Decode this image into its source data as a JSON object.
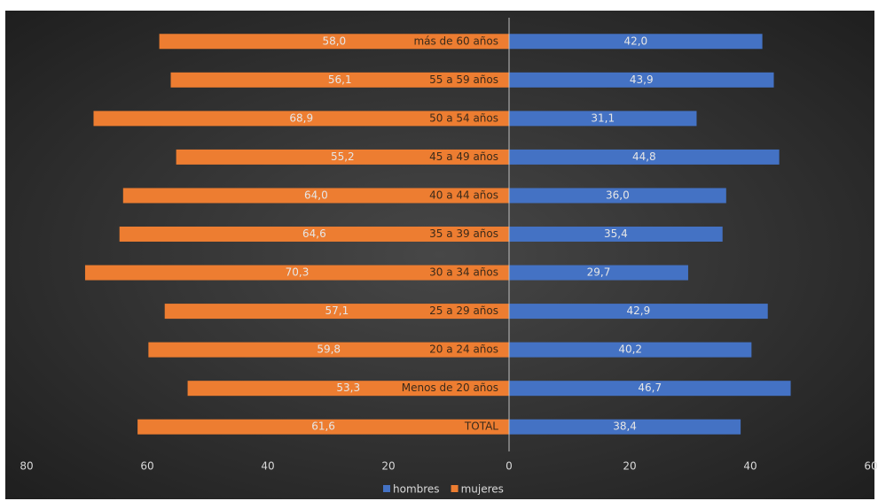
{
  "chart_data": {
    "type": "butterfly-bar",
    "categories": [
      "más de 60 años",
      "55 a 59 años",
      "50 a 54 años",
      "45 a 49 años",
      "40 a 44 años",
      "35 a 39 años",
      "30 a 34 años",
      "25 a 29 años",
      "20 a 24 años",
      "Menos de 20 años",
      "TOTAL"
    ],
    "series": [
      {
        "name": "hombres",
        "color": "#4472c4",
        "values": [
          42.0,
          43.9,
          31.1,
          44.8,
          36.0,
          35.4,
          29.7,
          42.9,
          40.2,
          46.7,
          38.4
        ],
        "value_labels": [
          "42,0",
          "43,9",
          "31,1",
          "44,8",
          "36,0",
          "35,4",
          "29,7",
          "42,9",
          "40,2",
          "46,7",
          "38,4"
        ]
      },
      {
        "name": "mujeres",
        "color": "#ed7d31",
        "values": [
          -58.0,
          -56.1,
          -68.9,
          -55.2,
          -64.0,
          -64.6,
          -70.3,
          -57.1,
          -59.8,
          -53.3,
          -61.6
        ],
        "value_labels": [
          "58,0",
          "56,1",
          "68,9",
          "55,2",
          "64,0",
          "64,6",
          "70,3",
          "57,1",
          "59,8",
          "53,3",
          "61,6"
        ]
      }
    ],
    "xlim": [
      -80,
      60
    ],
    "xticks": [
      {
        "value": -80,
        "label": "80"
      },
      {
        "value": -60,
        "label": "60"
      },
      {
        "value": -40,
        "label": "40"
      },
      {
        "value": -20,
        "label": "20"
      },
      0,
      20,
      40,
      60
    ],
    "legend": "bottom"
  }
}
